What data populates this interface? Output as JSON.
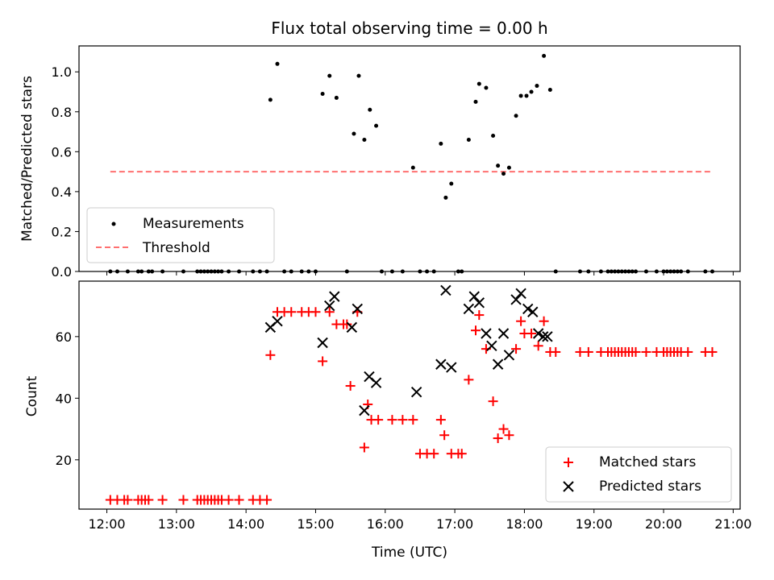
{
  "chart_data": [
    {
      "type": "scatter",
      "title": "Flux total observing time = 0.00 h",
      "xlabel": "",
      "ylabel": "Matched/Predicted stars",
      "xlim": [
        11.6,
        21.1
      ],
      "ylim": [
        0,
        1.13
      ],
      "yticks": [
        0.0,
        0.2,
        0.4,
        0.6,
        0.8,
        1.0
      ],
      "ytick_labels": [
        "0.0",
        "0.2",
        "0.4",
        "0.6",
        "0.8",
        "1.0"
      ],
      "legend_position": "lower-left",
      "series": [
        {
          "name": "Measurements",
          "color": "#000000",
          "marker": "dot",
          "x": [
            12.05,
            12.15,
            12.3,
            12.45,
            12.5,
            12.6,
            12.65,
            12.8,
            13.1,
            13.3,
            13.35,
            13.4,
            13.45,
            13.5,
            13.55,
            13.6,
            13.65,
            13.75,
            13.9,
            14.1,
            14.2,
            14.3,
            14.35,
            14.45,
            14.55,
            14.65,
            14.8,
            14.9,
            15.0,
            15.1,
            15.2,
            15.3,
            15.45,
            15.55,
            15.62,
            15.7,
            15.78,
            15.87,
            15.95,
            16.1,
            16.25,
            16.4,
            16.5,
            16.6,
            16.7,
            16.8,
            16.87,
            16.95,
            17.05,
            17.1,
            17.2,
            17.3,
            17.35,
            17.45,
            17.55,
            17.62,
            17.7,
            17.78,
            17.88,
            17.95,
            18.03,
            18.1,
            18.18,
            18.28,
            18.37,
            18.45,
            18.8,
            18.92,
            19.1,
            19.2,
            19.25,
            19.3,
            19.35,
            19.4,
            19.45,
            19.5,
            19.55,
            19.6,
            19.75,
            19.9,
            20.0,
            20.05,
            20.1,
            20.15,
            20.2,
            20.25,
            20.35,
            20.6,
            20.7
          ],
          "y": [
            0,
            0,
            0,
            0,
            0,
            0,
            0,
            0,
            0,
            0,
            0,
            0,
            0,
            0,
            0,
            0,
            0,
            0,
            0,
            0,
            0,
            0,
            0.86,
            1.04,
            0,
            0,
            0,
            0,
            0,
            0.89,
            0.98,
            0.87,
            0,
            0.69,
            0.98,
            0.66,
            0.81,
            0.73,
            0,
            0,
            0,
            0.52,
            0,
            0,
            0,
            0.64,
            0.37,
            0.44,
            0,
            0,
            0.66,
            0.85,
            0.94,
            0.92,
            0.68,
            0.53,
            0.49,
            0.52,
            0.78,
            0.88,
            0.88,
            0.9,
            0.93,
            1.08,
            0.91,
            0,
            0,
            0,
            0,
            0,
            0,
            0,
            0,
            0,
            0,
            0,
            0,
            0,
            0,
            0,
            0,
            0,
            0,
            0,
            0,
            0,
            0,
            0,
            0
          ]
        },
        {
          "name": "Threshold",
          "color": "#ff7070",
          "style": "dashed",
          "x": [
            12.05,
            20.7
          ],
          "y": [
            0.5,
            0.5
          ]
        }
      ]
    },
    {
      "type": "scatter",
      "title": "",
      "xlabel": "Time (UTC)",
      "ylabel": "Count",
      "xlim": [
        11.6,
        21.1
      ],
      "ylim": [
        4,
        78
      ],
      "yticks": [
        20,
        40,
        60
      ],
      "ytick_labels": [
        "20",
        "40",
        "60"
      ],
      "xticks": [
        12,
        13,
        14,
        15,
        16,
        17,
        18,
        19,
        20,
        21
      ],
      "xtick_labels": [
        "12:00",
        "13:00",
        "14:00",
        "15:00",
        "16:00",
        "17:00",
        "18:00",
        "19:00",
        "20:00",
        "21:00"
      ],
      "legend_position": "lower-right",
      "series": [
        {
          "name": "Matched stars",
          "color": "#ff0000",
          "marker": "plus",
          "x": [
            12.05,
            12.15,
            12.25,
            12.3,
            12.45,
            12.5,
            12.55,
            12.6,
            12.8,
            13.1,
            13.3,
            13.35,
            13.4,
            13.45,
            13.5,
            13.55,
            13.6,
            13.65,
            13.75,
            13.9,
            14.1,
            14.2,
            14.3,
            14.35,
            14.45,
            14.55,
            14.65,
            14.8,
            14.9,
            15.0,
            15.1,
            15.2,
            15.3,
            15.4,
            15.45,
            15.5,
            15.6,
            15.7,
            15.75,
            15.8,
            15.9,
            16.1,
            16.25,
            16.4,
            16.5,
            16.6,
            16.7,
            16.8,
            16.85,
            16.95,
            17.05,
            17.1,
            17.2,
            17.3,
            17.35,
            17.45,
            17.55,
            17.62,
            17.7,
            17.78,
            17.88,
            17.95,
            18.0,
            18.1,
            18.2,
            18.28,
            18.37,
            18.45,
            18.8,
            18.92,
            19.1,
            19.2,
            19.25,
            19.3,
            19.35,
            19.4,
            19.45,
            19.5,
            19.55,
            19.6,
            19.75,
            19.9,
            20.0,
            20.05,
            20.1,
            20.15,
            20.2,
            20.25,
            20.35,
            20.6,
            20.7
          ],
          "y": [
            7,
            7,
            7,
            7,
            7,
            7,
            7,
            7,
            7,
            7,
            7,
            7,
            7,
            7,
            7,
            7,
            7,
            7,
            7,
            7,
            7,
            7,
            7,
            54,
            68,
            68,
            68,
            68,
            68,
            68,
            52,
            68,
            64,
            64,
            64,
            44,
            68,
            24,
            38,
            33,
            33,
            33,
            33,
            33,
            22,
            22,
            22,
            33,
            28,
            22,
            22,
            22,
            46,
            62,
            67,
            56,
            39,
            27,
            30,
            28,
            56,
            65,
            61,
            61,
            57,
            65,
            55,
            55,
            55,
            55,
            55,
            55,
            55,
            55,
            55,
            55,
            55,
            55,
            55,
            55,
            55,
            55,
            55,
            55,
            55,
            55,
            55,
            55,
            55,
            55,
            55
          ]
        },
        {
          "name": "Predicted stars",
          "color": "#000000",
          "marker": "x",
          "x": [
            14.35,
            14.45,
            15.1,
            15.2,
            15.27,
            15.52,
            15.6,
            15.7,
            15.77,
            15.87,
            16.45,
            16.8,
            16.87,
            16.95,
            17.2,
            17.28,
            17.35,
            17.45,
            17.53,
            17.62,
            17.7,
            17.78,
            17.88,
            17.95,
            18.05,
            18.12,
            18.2,
            18.27,
            18.33
          ],
          "y": [
            63,
            65,
            58,
            70,
            73,
            63,
            69,
            36,
            47,
            45,
            42,
            51,
            75,
            50,
            69,
            73,
            71,
            61,
            57,
            51,
            61,
            54,
            72,
            74,
            69,
            68,
            61,
            60,
            60
          ]
        }
      ]
    }
  ]
}
